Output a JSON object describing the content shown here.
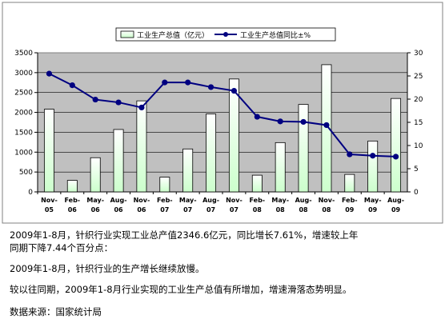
{
  "chart_data": {
    "type": "bar",
    "categories": [
      [
        "Nov-",
        "05"
      ],
      [
        "Feb-",
        "06"
      ],
      [
        "May-",
        "06"
      ],
      [
        "Aug-",
        "06"
      ],
      [
        "Nov-",
        "06"
      ],
      [
        "Feb-",
        "07"
      ],
      [
        "May-",
        "07"
      ],
      [
        "Aug-",
        "07"
      ],
      [
        "Nov-",
        "07"
      ],
      [
        "Feb-",
        "08"
      ],
      [
        "May-",
        "08"
      ],
      [
        "Aug-",
        "08"
      ],
      [
        "Nov-",
        "08"
      ],
      [
        "Feb-",
        "09"
      ],
      [
        "May-",
        "09"
      ],
      [
        "Aug-",
        "09"
      ]
    ],
    "series": [
      {
        "name": "工业生产总值（亿元）",
        "type": "bar",
        "axis": "left",
        "values": [
          2080,
          290,
          860,
          1570,
          2290,
          370,
          1080,
          1960,
          2840,
          420,
          1240,
          2200,
          3200,
          440,
          1280,
          2350
        ]
      },
      {
        "name": "工业生产总值同比±%",
        "type": "line",
        "axis": "right",
        "values": [
          25.5,
          23,
          19.9,
          19.3,
          18.2,
          23.6,
          23.6,
          22.6,
          21.8,
          16.2,
          15.2,
          15.1,
          14.4,
          8.1,
          7.8,
          7.6
        ]
      }
    ],
    "y_left": {
      "min": 0,
      "max": 3500,
      "ticks": [
        0,
        500,
        1000,
        1500,
        2000,
        2500,
        3000,
        3500
      ]
    },
    "y_right": {
      "min": 0,
      "max": 30,
      "ticks": [
        0,
        5,
        10,
        15,
        20,
        25,
        30
      ]
    },
    "legend_position": "top-right",
    "colors": {
      "plot_bg": "#c0c0c0",
      "bar_fill_top": "#ffffff",
      "bar_fill_bottom": "#ccffcc",
      "line": "#000080"
    }
  },
  "text": {
    "para1_line1": "2009年1-8月，针织行业实现工业总产值2346.6亿元，同比增长7.61%，增速较上年",
    "para1_line2": "同期下降7.44个百分点：",
    "para2": "2009年1-8月，针织行业的生产增长继续放慢。",
    "para3": "较以往同期，2009年1-8月行业实现的工业生产总值有所增加，增速滑落态势明显。",
    "source": "数据来源：国家统计局"
  }
}
